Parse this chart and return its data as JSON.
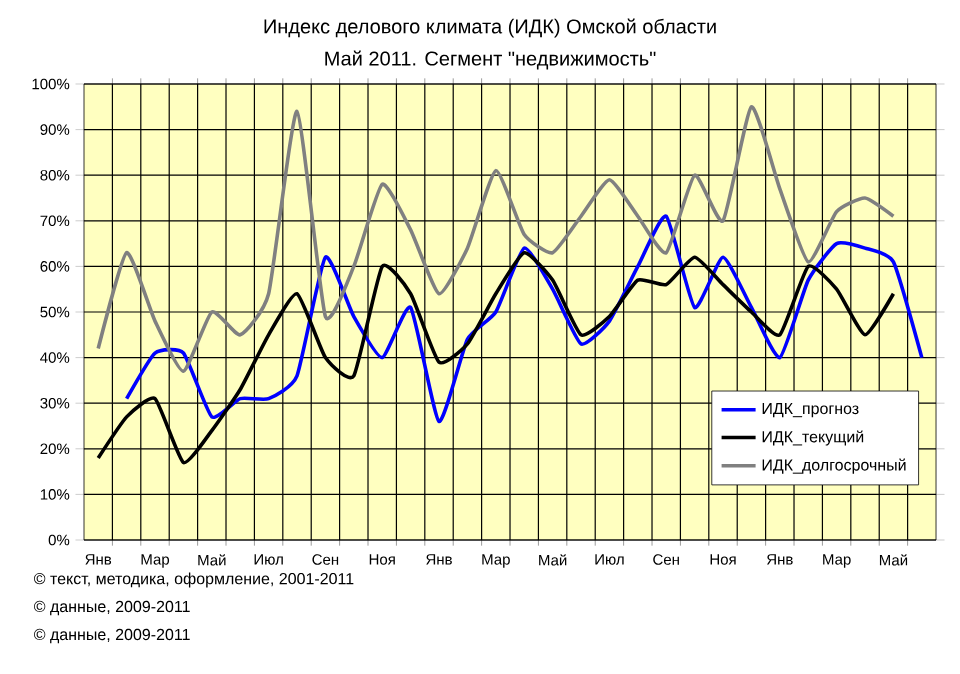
{
  "chart_data": {
    "type": "line",
    "title": "Индекс делового климата (ИДК) Омской области",
    "subtitle": "Май 2011. Сегмент \"недвижимость\"",
    "categories": [
      "Янв",
      null,
      "Мар",
      null,
      "Май",
      null,
      "Июл",
      null,
      "Сен",
      null,
      "Ноя",
      null,
      "Янв",
      null,
      "Мар",
      null,
      "Май",
      null,
      "Июл",
      null,
      "Сен",
      null,
      "Ноя",
      null,
      "Янв",
      null,
      "Мар",
      null,
      "Май",
      null
    ],
    "series": [
      {
        "name": "ИДК_прогноз",
        "color": "#0000ff",
        "values": [
          null,
          31,
          41,
          41,
          27,
          31,
          31,
          36,
          62,
          49,
          40,
          51,
          26,
          44,
          50,
          64,
          55,
          43,
          48,
          60,
          71,
          51,
          62,
          51,
          40,
          57,
          65,
          64,
          61,
          40
        ]
      },
      {
        "name": "ИДК_текущий",
        "color": "#000000",
        "values": [
          18,
          27,
          31,
          17,
          24,
          33,
          45,
          54,
          40,
          36,
          60,
          54,
          39,
          43,
          54,
          63,
          57,
          45,
          49,
          57,
          56,
          62,
          56,
          50,
          45,
          60,
          55,
          45,
          54,
          null
        ]
      },
      {
        "name": "ИДК_долгосрочный",
        "color": "#808080",
        "values": [
          42,
          63,
          48,
          37,
          50,
          45,
          54,
          94,
          49,
          60,
          78,
          68,
          54,
          64,
          81,
          67,
          63,
          71,
          79,
          71,
          63,
          80,
          70,
          95,
          77,
          61,
          72,
          75,
          71,
          null
        ]
      }
    ],
    "ylim": [
      0,
      100
    ],
    "yticks": [
      {
        "value": 0,
        "label": "0%"
      },
      {
        "value": 10,
        "label": "10%"
      },
      {
        "value": 20,
        "label": "20%"
      },
      {
        "value": 30,
        "label": "30%"
      },
      {
        "value": 40,
        "label": "40%"
      },
      {
        "value": 50,
        "label": "50%"
      },
      {
        "value": 60,
        "label": "60%"
      },
      {
        "value": 70,
        "label": "70%"
      },
      {
        "value": 80,
        "label": "80%"
      },
      {
        "value": 90,
        "label": "90%"
      },
      {
        "value": 100,
        "label": "100%"
      }
    ],
    "grid": true,
    "legend": "right",
    "marker": "none",
    "line_style": "solid",
    "annotations": [
      "© текст, методика, оформление, 2001-2011",
      "© данные, 2009-2011",
      "© данные, 2009-2011"
    ]
  }
}
